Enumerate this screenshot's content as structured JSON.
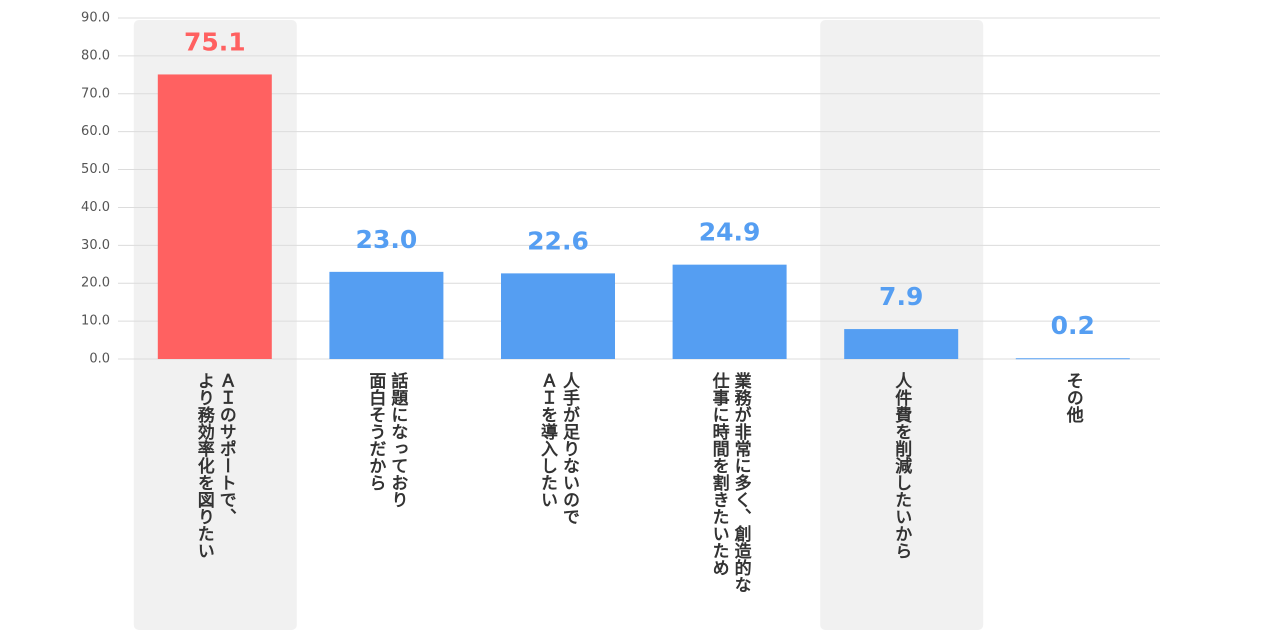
{
  "chart_data": {
    "type": "bar",
    "categories": [
      "ＡＩのサポートで、\nより務効率化を図りたい",
      "話題になっており\n面白そうだから",
      "人手が足りないので\nＡＩを導入したい",
      "業務が非常に多く、創造的な\n仕事に時間を割きたいため",
      "人件費を削減したいから",
      "その他"
    ],
    "values": [
      75.1,
      23.0,
      22.6,
      24.9,
      7.9,
      0.2
    ],
    "value_labels": [
      "75.1",
      "23.0",
      "22.6",
      "24.9",
      "7.9",
      "0.2"
    ],
    "colors": [
      "#ff6161",
      "#559ef2",
      "#559ef2",
      "#559ef2",
      "#559ef2",
      "#559ef2"
    ],
    "highlight": [
      0,
      4
    ],
    "ylim": [
      0,
      90
    ],
    "yticks": [
      {
        "value": 0,
        "label": "0.0"
      },
      {
        "value": 10,
        "label": "10.0"
      },
      {
        "value": 20,
        "label": "20.0"
      },
      {
        "value": 30,
        "label": "30.0"
      },
      {
        "value": 40,
        "label": "40.0"
      },
      {
        "value": 50,
        "label": "50.0"
      },
      {
        "value": 60,
        "label": "60.0"
      },
      {
        "value": 70,
        "label": "70.0"
      },
      {
        "value": 80,
        "label": "80.0"
      },
      {
        "value": 90,
        "label": "90.0"
      }
    ],
    "grid": true
  }
}
